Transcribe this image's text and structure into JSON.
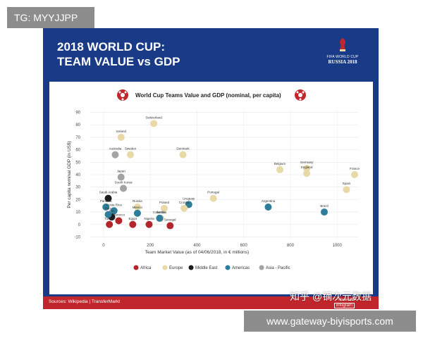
{
  "tag_top": "TG: MYYJJPP",
  "tag_bottom": "www.gateway-biyisports.com",
  "watermark": "知乎 @镝次元数据",
  "poster": {
    "title_line1": "2018 WORLD CUP:",
    "title_line2": "TEAM VALUE vs GDP",
    "brand_small": "FIFA WORLD CUP",
    "brand_large": "RUSSIA 2018",
    "source": "Sources: Wikipedia | TransferMarkt",
    "made_with": "Made with",
    "made_with_brand": "infogram"
  },
  "colors": {
    "Africa": "#b3262c",
    "Europe": "#e8d9a6",
    "Middle East": "#1c1c1c",
    "Americas": "#2e7e9b",
    "Asia - Pacific": "#a3a3a3",
    "poster_bg": "#193a86",
    "footer_red": "#c0262b"
  },
  "chart_data": {
    "type": "scatter",
    "title": "World Cup Teams Value and GDP (nominal, per capita)",
    "xlabel": "Team Market Value (as of 04/06/2018, in € millions)",
    "ylabel": "Per capita nominal GDP (in US$)",
    "xlim": [
      -60,
      1090
    ],
    "ylim": [
      -12,
      92
    ],
    "xticks": [
      0,
      200,
      400,
      600,
      800,
      1000
    ],
    "yticks": [
      -10,
      0,
      10,
      20,
      30,
      40,
      50,
      60,
      70,
      80,
      90
    ],
    "legend": [
      "Africa",
      "Europe",
      "Middle East",
      "Americas",
      "Asia - Pacific"
    ],
    "legend_position": "bottom",
    "points": [
      {
        "name": "Switzerland",
        "x": 215,
        "y": 81,
        "region": "Europe"
      },
      {
        "name": "Iceland",
        "x": 75,
        "y": 70,
        "region": "Europe"
      },
      {
        "name": "Sweden",
        "x": 115,
        "y": 56,
        "region": "Europe"
      },
      {
        "name": "Australia",
        "x": 50,
        "y": 56,
        "region": "Asia - Pacific"
      },
      {
        "name": "Denmark",
        "x": 340,
        "y": 56,
        "region": "Europe"
      },
      {
        "name": "Belgium",
        "x": 755,
        "y": 44,
        "region": "Europe"
      },
      {
        "name": "Germany",
        "x": 870,
        "y": 45,
        "region": "Europe"
      },
      {
        "name": "England",
        "x": 870,
        "y": 41,
        "region": "Europe"
      },
      {
        "name": "France",
        "x": 1075,
        "y": 40,
        "region": "Europe"
      },
      {
        "name": "Japan",
        "x": 75,
        "y": 38,
        "region": "Asia - Pacific"
      },
      {
        "name": "South Korea",
        "x": 85,
        "y": 29,
        "region": "Asia - Pacific"
      },
      {
        "name": "Spain",
        "x": 1040,
        "y": 28,
        "region": "Europe"
      },
      {
        "name": "Portugal",
        "x": 470,
        "y": 21,
        "region": "Europe"
      },
      {
        "name": "Saudi Arabia",
        "x": 20,
        "y": 21,
        "region": "Middle East"
      },
      {
        "name": "Uruguay",
        "x": 365,
        "y": 16,
        "region": "Americas"
      },
      {
        "name": "Poland",
        "x": 260,
        "y": 13,
        "region": "Europe"
      },
      {
        "name": "Russia",
        "x": 145,
        "y": 14,
        "region": "Europe"
      },
      {
        "name": "Panama",
        "x": 10,
        "y": 14,
        "region": "Americas"
      },
      {
        "name": "Costa Rica",
        "x": 45,
        "y": 11,
        "region": "Americas"
      },
      {
        "name": "Argentina",
        "x": 705,
        "y": 14,
        "region": "Americas"
      },
      {
        "name": "Croatia",
        "x": 345,
        "y": 13,
        "region": "Europe"
      },
      {
        "name": "Mexico",
        "x": 145,
        "y": 9,
        "region": "Americas"
      },
      {
        "name": "Iran",
        "x": 35,
        "y": 6,
        "region": "Middle East"
      },
      {
        "name": "Brazil",
        "x": 945,
        "y": 10,
        "region": "Americas"
      },
      {
        "name": "Peru",
        "x": 20,
        "y": 8,
        "region": "Americas"
      },
      {
        "name": "Serbia",
        "x": 245,
        "y": 5,
        "region": "Europe"
      },
      {
        "name": "Morocco",
        "x": 65,
        "y": 3,
        "region": "Africa"
      },
      {
        "name": "Colombia",
        "x": 240,
        "y": 5,
        "region": "Americas"
      },
      {
        "name": "Tunisia",
        "x": 25,
        "y": 0,
        "region": "Africa"
      },
      {
        "name": "Egypt",
        "x": 125,
        "y": 0,
        "region": "Africa"
      },
      {
        "name": "Nigeria",
        "x": 195,
        "y": 0,
        "region": "Africa"
      },
      {
        "name": "Senegal",
        "x": 285,
        "y": -1,
        "region": "Africa"
      }
    ]
  }
}
